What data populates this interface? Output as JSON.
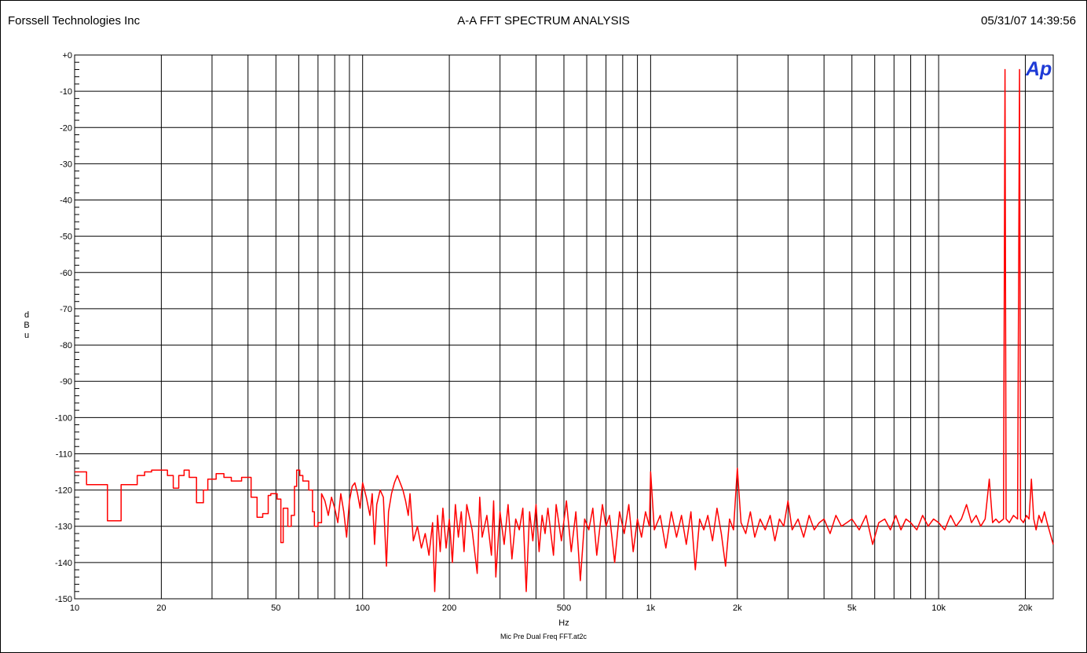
{
  "header": {
    "company": "Forssell Technologies Inc",
    "title": "A-A FFT SPECTRUM ANALYSIS",
    "timestamp": "05/31/07 14:39:56"
  },
  "footer": {
    "filename": "Mic Pre Dual Freq FFT.at2c"
  },
  "logo": {
    "text": "Ap",
    "color": "#1f3bd6"
  },
  "chart_data": {
    "type": "line",
    "title": "A-A FFT SPECTRUM ANALYSIS",
    "xlabel": "Hz",
    "ylabel": "dBu",
    "xscale": "log",
    "xlim": [
      10,
      25000
    ],
    "ylim": [
      -150,
      0
    ],
    "grid": true,
    "y_ticks": [
      {
        "value": 0,
        "label": "+0"
      },
      {
        "value": -10,
        "label": "-10"
      },
      {
        "value": -20,
        "label": "-20"
      },
      {
        "value": -30,
        "label": "-30"
      },
      {
        "value": -40,
        "label": "-40"
      },
      {
        "value": -50,
        "label": "-50"
      },
      {
        "value": -60,
        "label": "-60"
      },
      {
        "value": -70,
        "label": "-70"
      },
      {
        "value": -80,
        "label": "-80"
      },
      {
        "value": -90,
        "label": "-90"
      },
      {
        "value": -100,
        "label": "-100"
      },
      {
        "value": -110,
        "label": "-110"
      },
      {
        "value": -120,
        "label": "-120"
      },
      {
        "value": -130,
        "label": "-130"
      },
      {
        "value": -140,
        "label": "-140"
      },
      {
        "value": -150,
        "label": "-150"
      }
    ],
    "x_ticks": [
      {
        "value": 10,
        "label": "10"
      },
      {
        "value": 20,
        "label": "20"
      },
      {
        "value": 50,
        "label": "50"
      },
      {
        "value": 100,
        "label": "100"
      },
      {
        "value": 200,
        "label": "200"
      },
      {
        "value": 500,
        "label": "500"
      },
      {
        "value": 1000,
        "label": "1k"
      },
      {
        "value": 2000,
        "label": "2k"
      },
      {
        "value": 5000,
        "label": "5k"
      },
      {
        "value": 10000,
        "label": "10k"
      },
      {
        "value": 20000,
        "label": "20k"
      }
    ],
    "x_gridlines": [
      10,
      20,
      30,
      40,
      50,
      60,
      70,
      80,
      90,
      100,
      200,
      300,
      400,
      500,
      600,
      700,
      800,
      900,
      1000,
      2000,
      3000,
      4000,
      5000,
      6000,
      7000,
      8000,
      9000,
      10000,
      20000
    ],
    "series": [
      {
        "color": "#ff0000",
        "step_segments": [
          [
            10.0,
            -115.0
          ],
          [
            11.0,
            -118.5
          ],
          [
            13.0,
            -128.5
          ],
          [
            14.5,
            -118.5
          ],
          [
            16.5,
            -116.0
          ],
          [
            17.5,
            -115.0
          ],
          [
            18.5,
            -114.5
          ],
          [
            21.0,
            -116.0
          ],
          [
            22.0,
            -119.5
          ],
          [
            23.0,
            -116.0
          ],
          [
            24.0,
            -114.5
          ],
          [
            25.0,
            -116.5
          ],
          [
            26.5,
            -123.5
          ],
          [
            28.0,
            -120.0
          ],
          [
            29.0,
            -117.0
          ],
          [
            31.0,
            -115.5
          ],
          [
            33.0,
            -116.5
          ],
          [
            35.0,
            -117.5
          ],
          [
            38.0,
            -116.5
          ],
          [
            41.0,
            -122.0
          ],
          [
            43.0,
            -127.5
          ],
          [
            45.0,
            -126.5
          ],
          [
            47.0,
            -121.5
          ],
          [
            48.0,
            -121.0
          ],
          [
            50.5,
            -122.5
          ],
          [
            52.0,
            -134.5
          ],
          [
            53.0,
            -125.0
          ],
          [
            55.0,
            -130.0
          ],
          [
            56.5,
            -127.0
          ],
          [
            58.0,
            -119.0
          ],
          [
            59.0,
            -114.5
          ],
          [
            60.5,
            -116.0
          ],
          [
            62.0,
            -117.5
          ],
          [
            65.0,
            -120.0
          ],
          [
            67.0,
            -126.0
          ],
          [
            68.0,
            -130.0
          ],
          [
            70.0,
            -129.0
          ]
        ],
        "points": [
          [
            72,
            -121
          ],
          [
            74,
            -123
          ],
          [
            76,
            -127
          ],
          [
            78,
            -122
          ],
          [
            80,
            -125
          ],
          [
            82,
            -129
          ],
          [
            84,
            -121
          ],
          [
            86,
            -126
          ],
          [
            88,
            -133
          ],
          [
            90,
            -123
          ],
          [
            92,
            -119
          ],
          [
            94,
            -118
          ],
          [
            96,
            -121
          ],
          [
            98,
            -125
          ],
          [
            100,
            -118
          ],
          [
            103,
            -122
          ],
          [
            106,
            -127
          ],
          [
            108,
            -121
          ],
          [
            110,
            -135
          ],
          [
            112,
            -124
          ],
          [
            115,
            -120
          ],
          [
            118,
            -122
          ],
          [
            121,
            -141
          ],
          [
            123,
            -126
          ],
          [
            126,
            -121
          ],
          [
            129,
            -118
          ],
          [
            132,
            -116
          ],
          [
            135,
            -118
          ],
          [
            138,
            -120
          ],
          [
            141,
            -123
          ],
          [
            144,
            -127
          ],
          [
            146,
            -121
          ],
          [
            150,
            -134
          ],
          [
            155,
            -130
          ],
          [
            160,
            -136
          ],
          [
            165,
            -132
          ],
          [
            170,
            -138
          ],
          [
            175,
            -129
          ],
          [
            178,
            -148
          ],
          [
            182,
            -127
          ],
          [
            186,
            -137
          ],
          [
            190,
            -125
          ],
          [
            195,
            -136
          ],
          [
            200,
            -128
          ],
          [
            205,
            -140
          ],
          [
            210,
            -124
          ],
          [
            215,
            -133
          ],
          [
            220,
            -126
          ],
          [
            225,
            -137
          ],
          [
            230,
            -124
          ],
          [
            240,
            -131
          ],
          [
            250,
            -143
          ],
          [
            255,
            -122
          ],
          [
            260,
            -133
          ],
          [
            270,
            -127
          ],
          [
            280,
            -138
          ],
          [
            285,
            -123
          ],
          [
            290,
            -144
          ],
          [
            300,
            -126
          ],
          [
            310,
            -135
          ],
          [
            320,
            -124
          ],
          [
            330,
            -139
          ],
          [
            340,
            -128
          ],
          [
            350,
            -131
          ],
          [
            360,
            -125
          ],
          [
            370,
            -148
          ],
          [
            380,
            -126
          ],
          [
            390,
            -134
          ],
          [
            400,
            -124
          ],
          [
            410,
            -137
          ],
          [
            420,
            -127
          ],
          [
            430,
            -132
          ],
          [
            440,
            -125
          ],
          [
            460,
            -138
          ],
          [
            470,
            -124
          ],
          [
            490,
            -134
          ],
          [
            510,
            -123
          ],
          [
            530,
            -137
          ],
          [
            550,
            -126
          ],
          [
            570,
            -145
          ],
          [
            590,
            -128
          ],
          [
            610,
            -131
          ],
          [
            630,
            -125
          ],
          [
            650,
            -138
          ],
          [
            680,
            -124
          ],
          [
            700,
            -130
          ],
          [
            720,
            -127
          ],
          [
            750,
            -140
          ],
          [
            780,
            -126
          ],
          [
            810,
            -132
          ],
          [
            840,
            -124
          ],
          [
            870,
            -137
          ],
          [
            900,
            -128
          ],
          [
            930,
            -133
          ],
          [
            960,
            -126
          ],
          [
            990,
            -130
          ],
          [
            1000,
            -115
          ],
          [
            1030,
            -131
          ],
          [
            1080,
            -127
          ],
          [
            1130,
            -136
          ],
          [
            1180,
            -126
          ],
          [
            1230,
            -133
          ],
          [
            1280,
            -127
          ],
          [
            1330,
            -135
          ],
          [
            1380,
            -126
          ],
          [
            1430,
            -142
          ],
          [
            1480,
            -128
          ],
          [
            1530,
            -131
          ],
          [
            1580,
            -127
          ],
          [
            1640,
            -134
          ],
          [
            1700,
            -125
          ],
          [
            1760,
            -132
          ],
          [
            1820,
            -141
          ],
          [
            1880,
            -128
          ],
          [
            1940,
            -131
          ],
          [
            2000,
            -114
          ],
          [
            2060,
            -129
          ],
          [
            2140,
            -132
          ],
          [
            2220,
            -126
          ],
          [
            2300,
            -133
          ],
          [
            2400,
            -128
          ],
          [
            2500,
            -131
          ],
          [
            2600,
            -127
          ],
          [
            2700,
            -134
          ],
          [
            2800,
            -128
          ],
          [
            2900,
            -130
          ],
          [
            3000,
            -123
          ],
          [
            3100,
            -131
          ],
          [
            3250,
            -128
          ],
          [
            3400,
            -133
          ],
          [
            3550,
            -127
          ],
          [
            3700,
            -131
          ],
          [
            3850,
            -129
          ],
          [
            4000,
            -128
          ],
          [
            4200,
            -132
          ],
          [
            4400,
            -127
          ],
          [
            4600,
            -130
          ],
          [
            4800,
            -129
          ],
          [
            5000,
            -128
          ],
          [
            5300,
            -131
          ],
          [
            5600,
            -127
          ],
          [
            5900,
            -135
          ],
          [
            6200,
            -129
          ],
          [
            6500,
            -128
          ],
          [
            6800,
            -131
          ],
          [
            7100,
            -127
          ],
          [
            7400,
            -131
          ],
          [
            7700,
            -128
          ],
          [
            8000,
            -129
          ],
          [
            8400,
            -131
          ],
          [
            8800,
            -127
          ],
          [
            9200,
            -130
          ],
          [
            9600,
            -128
          ],
          [
            10000,
            -129
          ],
          [
            10500,
            -131
          ],
          [
            11000,
            -127
          ],
          [
            11500,
            -130
          ],
          [
            12000,
            -128
          ],
          [
            12500,
            -124
          ],
          [
            13000,
            -129
          ],
          [
            13500,
            -127
          ],
          [
            14000,
            -130
          ],
          [
            14500,
            -128
          ],
          [
            15000,
            -117
          ],
          [
            15400,
            -129
          ],
          [
            15800,
            -128
          ],
          [
            16200,
            -129
          ],
          [
            16800,
            -128
          ],
          [
            17000,
            -4
          ],
          [
            17150,
            -128
          ],
          [
            17600,
            -129
          ],
          [
            18200,
            -127
          ],
          [
            18800,
            -128
          ],
          [
            19100,
            -4
          ],
          [
            19250,
            -128
          ],
          [
            19700,
            -129
          ],
          [
            20200,
            -127
          ],
          [
            20600,
            -128
          ],
          [
            21000,
            -117
          ],
          [
            21400,
            -128
          ],
          [
            21800,
            -131
          ],
          [
            22300,
            -127
          ],
          [
            22800,
            -129
          ],
          [
            23300,
            -126
          ],
          [
            23800,
            -129
          ],
          [
            24200,
            -131
          ],
          [
            24600,
            -133
          ],
          [
            25000,
            -135
          ]
        ]
      }
    ]
  }
}
